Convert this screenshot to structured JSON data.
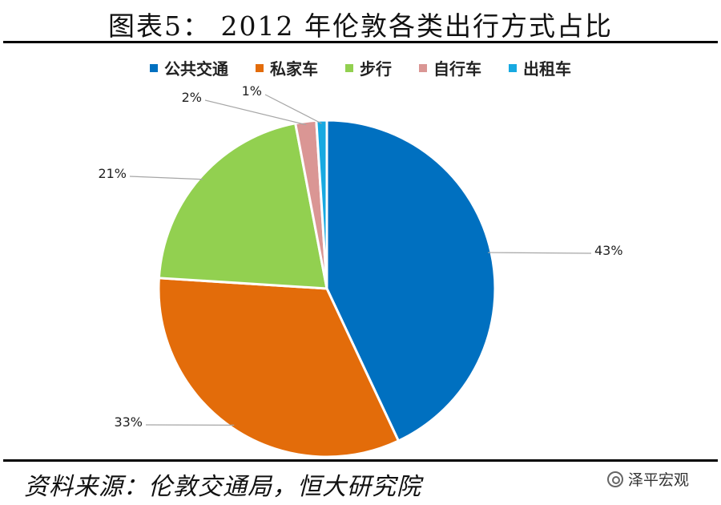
{
  "title": "图表5： 2012 年伦敦各类出行方式占比",
  "source": "资料来源：伦敦交通局，恒大研究院",
  "watermark": "泽平宏观",
  "chart_data": {
    "type": "pie",
    "title": "",
    "legend_position": "top",
    "slices": [
      {
        "name": "公共交通",
        "value": 43,
        "label": "43%",
        "color": "#0070C0"
      },
      {
        "name": "私家车",
        "value": 33,
        "label": "33%",
        "color": "#E36C0A"
      },
      {
        "name": "步行",
        "value": 21,
        "label": "21%",
        "color": "#92D050"
      },
      {
        "name": "自行车",
        "value": 2,
        "label": "2%",
        "color": "#DA9694"
      },
      {
        "name": "出租车",
        "value": 1,
        "label": "1%",
        "color": "#17A9E1"
      }
    ]
  }
}
